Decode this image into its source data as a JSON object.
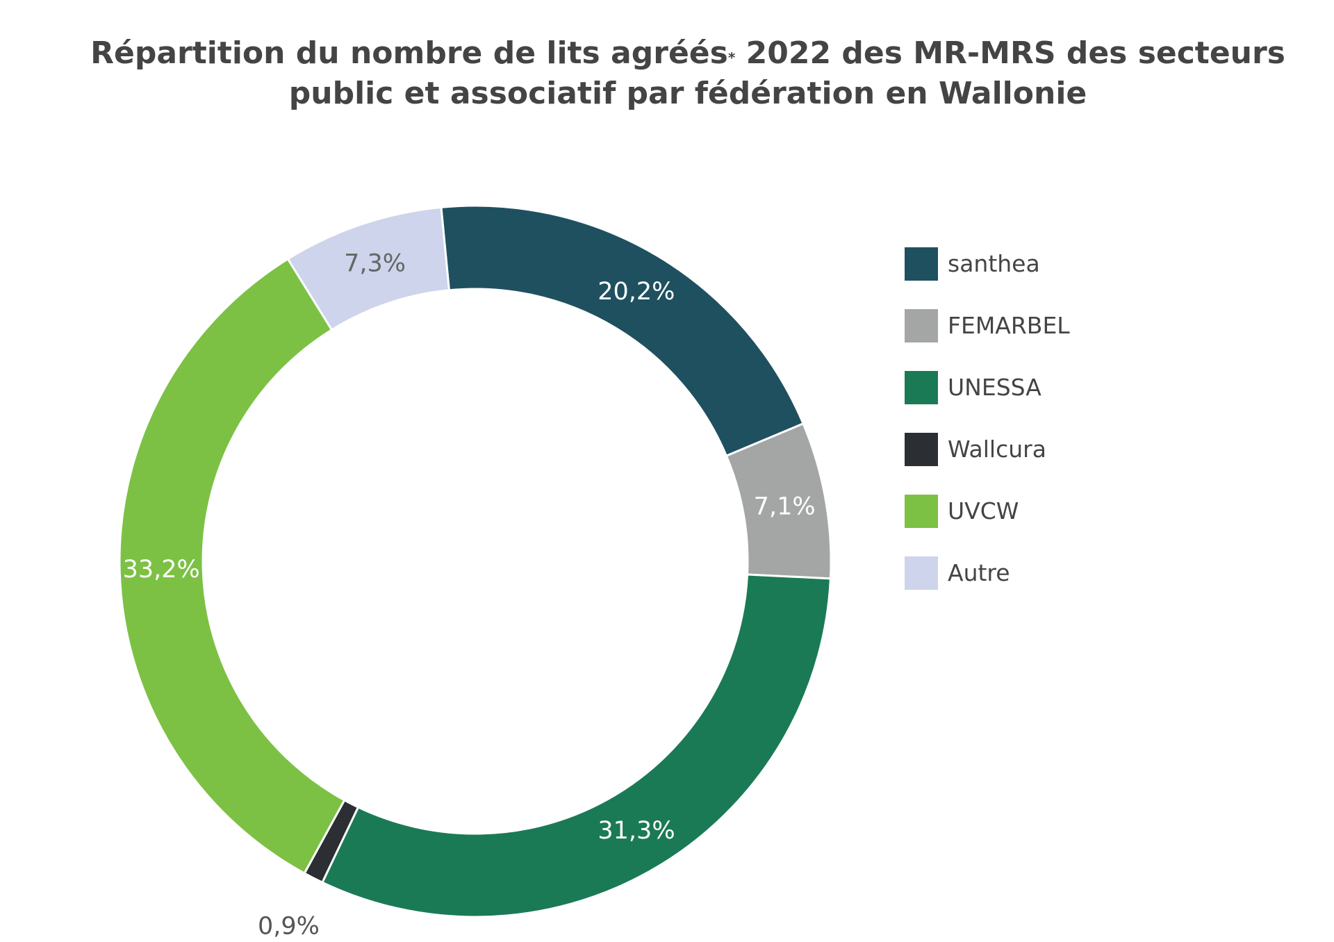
{
  "title": {
    "line1_part1": "Répartition du nombre de lits agréés",
    "line1_sup": "*",
    "line1_part2": " 2022 des MR-MRS des secteurs",
    "line2": "public et associatif par fédération en Wallonie"
  },
  "chart_data": {
    "type": "pie",
    "variant": "donut",
    "title": "Répartition du nombre de lits agréés* 2022 des MR-MRS des secteurs public et associatif par fédération en Wallonie",
    "legend_position": "right",
    "slices": [
      {
        "name": "santhea",
        "value": 20.2,
        "label": "20,2%",
        "color": "#1f5060",
        "label_color": "#ffffff"
      },
      {
        "name": "FEMARBEL",
        "value": 7.1,
        "label": "7,1%",
        "color": "#a4a6a5",
        "label_color": "#ffffff"
      },
      {
        "name": "UNESSA",
        "value": 31.3,
        "label": "31,3%",
        "color": "#1b7a56",
        "label_color": "#ffffff"
      },
      {
        "name": "Wallcura",
        "value": 0.9,
        "label": "0,9%",
        "color": "#2b2f33",
        "label_color": "#555555"
      },
      {
        "name": "UVCW",
        "value": 33.2,
        "label": "33,2%",
        "color": "#7cc144",
        "label_color": "#ffffff"
      },
      {
        "name": "Autre",
        "value": 7.3,
        "label": "7,3%",
        "color": "#cdd4eb",
        "label_color": "#666666"
      }
    ]
  }
}
